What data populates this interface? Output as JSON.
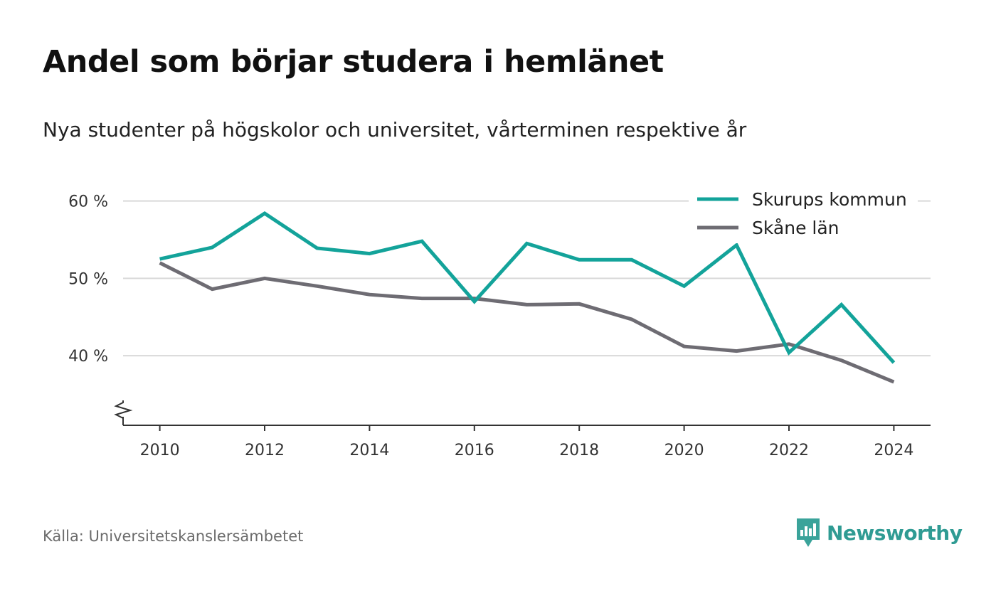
{
  "header": {
    "title": "Andel som börjar studera i hemlänet",
    "subtitle": "Nya studenter på högskolor och universitet, vårterminen respektive år"
  },
  "footer": {
    "source": "Källa: Universitetskanslersämbetet",
    "brand": "Newsworthy"
  },
  "colors": {
    "series_1": "#13a39a",
    "series_2": "#6e6c73",
    "grid": "#d9d9d9",
    "axis": "#333333",
    "brand": "#2f9b93"
  },
  "icons": {
    "brand": "newsworthy-logo-icon",
    "axis_break": "axis-break-icon"
  },
  "chart_data": {
    "type": "line",
    "title": "Andel som börjar studera i hemlänet",
    "subtitle": "Nya studenter på högskolor och universitet, vårterminen respektive år",
    "xlabel": "",
    "ylabel": "",
    "x": [
      2010,
      2011,
      2012,
      2013,
      2014,
      2015,
      2016,
      2017,
      2018,
      2019,
      2020,
      2021,
      2022,
      2023,
      2024
    ],
    "series": [
      {
        "name": "Skurups kommun",
        "values": [
          52.5,
          54.0,
          58.4,
          53.9,
          53.2,
          54.8,
          47.0,
          54.5,
          52.4,
          52.4,
          49.0,
          54.3,
          40.4,
          46.6,
          39.1
        ]
      },
      {
        "name": "Skåne län",
        "values": [
          52.0,
          48.6,
          50.0,
          49.0,
          47.9,
          47.4,
          47.4,
          46.6,
          46.7,
          44.7,
          41.2,
          40.6,
          41.5,
          39.4,
          36.6
        ]
      }
    ],
    "xticks": [
      "2010",
      "2012",
      "2014",
      "2016",
      "2018",
      "2020",
      "2022",
      "2024"
    ],
    "yticks": [
      {
        "value": 40,
        "label": "40 %"
      },
      {
        "value": 50,
        "label": "50 %"
      },
      {
        "value": 60,
        "label": "60 %"
      }
    ],
    "xlim": [
      2009.3,
      2024.7
    ],
    "ylim": [
      31,
      63
    ],
    "axis_break": true,
    "grid": "horizontal",
    "legend_position": "top-right"
  }
}
